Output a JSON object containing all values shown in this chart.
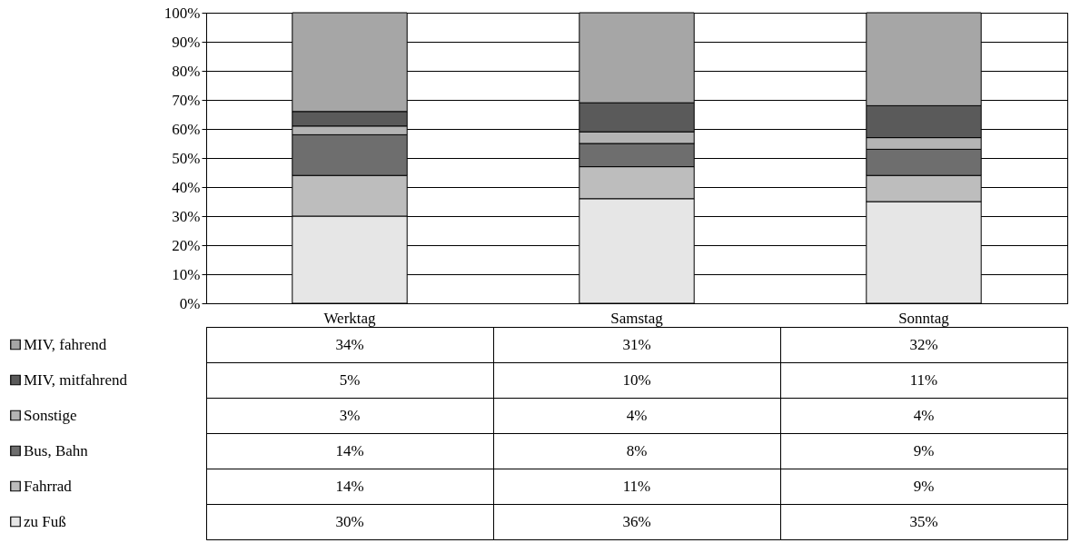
{
  "chart_data": {
    "type": "bar",
    "stacked": true,
    "categories": [
      "Werktag",
      "Samstag",
      "Sonntag"
    ],
    "series": [
      {
        "name": "zu Fuß",
        "color": "#e6e6e6",
        "values": [
          30,
          36,
          35
        ],
        "value_labels": [
          "30%",
          "36%",
          "35%"
        ]
      },
      {
        "name": "Fahrrad",
        "color": "#bdbdbd",
        "values": [
          14,
          11,
          9
        ],
        "value_labels": [
          "14%",
          "11%",
          "9%"
        ]
      },
      {
        "name": "Bus, Bahn",
        "color": "#6e6e6e",
        "values": [
          14,
          8,
          9
        ],
        "value_labels": [
          "14%",
          "8%",
          "9%"
        ]
      },
      {
        "name": "Sonstige",
        "color": "#b4b4b4",
        "values": [
          3,
          4,
          4
        ],
        "value_labels": [
          "3%",
          "4%",
          "4%"
        ]
      },
      {
        "name": "MIV, mitfahrend",
        "color": "#5a5a5a",
        "values": [
          5,
          10,
          11
        ],
        "value_labels": [
          "5%",
          "10%",
          "11%"
        ]
      },
      {
        "name": "MIV, fahrend",
        "color": "#a6a6a6",
        "values": [
          34,
          31,
          32
        ],
        "value_labels": [
          "34%",
          "31%",
          "32%"
        ]
      }
    ],
    "ylim": [
      0,
      100
    ],
    "yticks": [
      {
        "value": 0,
        "label": "0%"
      },
      {
        "value": 10,
        "label": "10%"
      },
      {
        "value": 20,
        "label": "20%"
      },
      {
        "value": 30,
        "label": "30%"
      },
      {
        "value": 40,
        "label": "40%"
      },
      {
        "value": 50,
        "label": "50%"
      },
      {
        "value": 60,
        "label": "60%"
      },
      {
        "value": 70,
        "label": "70%"
      },
      {
        "value": 80,
        "label": "80%"
      },
      {
        "value": 90,
        "label": "90%"
      },
      {
        "value": 100,
        "label": "100%"
      }
    ],
    "grid": "y",
    "legend": "bottom left"
  }
}
